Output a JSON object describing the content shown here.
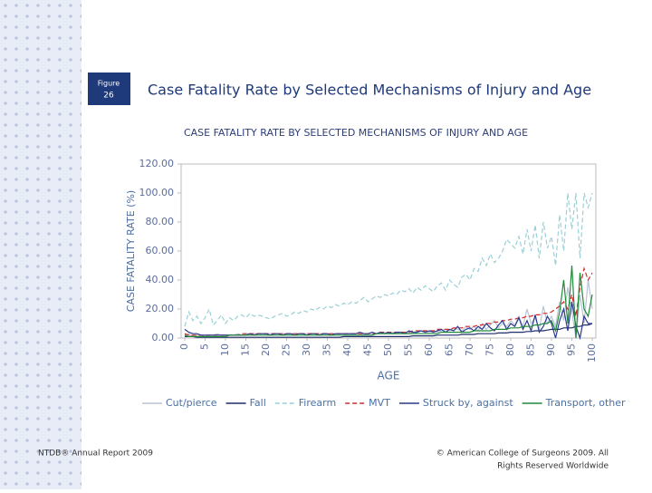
{
  "header": {
    "figure_label": "Figure",
    "figure_number": "26",
    "title": "Case Fatality Rate by Selected Mechanisms of Injury and Age"
  },
  "footer": {
    "left": "NTDB® Annual Report 2009",
    "right_line1": "© American College of Surgeons 2009.  All",
    "right_line2": "Rights Reserved Worldwide"
  },
  "chart_data": {
    "type": "line",
    "title": "CASE FATALITY RATE BY SELECTED MECHANISMS OF INJURY AND AGE",
    "x_label": "AGE",
    "y_label": "CASE FATALITY RATE (%)",
    "xlim": [
      0,
      100
    ],
    "ylim": [
      0,
      120
    ],
    "xticks": [
      0,
      5,
      10,
      15,
      20,
      25,
      30,
      35,
      40,
      45,
      50,
      55,
      60,
      65,
      70,
      75,
      80,
      85,
      90,
      95,
      100
    ],
    "yticks": [
      {
        "value": 0,
        "label": "0.00"
      },
      {
        "value": 20,
        "label": "20.00"
      },
      {
        "value": 40,
        "label": "40.00"
      },
      {
        "value": 60,
        "label": "60.00"
      },
      {
        "value": 80,
        "label": "80.00"
      },
      {
        "value": 100,
        "label": "100.00"
      },
      {
        "value": 120,
        "label": "120.00"
      }
    ],
    "grid": false,
    "x": [
      0,
      1,
      2,
      3,
      4,
      5,
      6,
      7,
      8,
      9,
      10,
      11,
      12,
      13,
      14,
      15,
      16,
      17,
      18,
      19,
      20,
      21,
      22,
      23,
      24,
      25,
      26,
      27,
      28,
      29,
      30,
      31,
      32,
      33,
      34,
      35,
      36,
      37,
      38,
      39,
      40,
      41,
      42,
      43,
      44,
      45,
      46,
      47,
      48,
      49,
      50,
      51,
      52,
      53,
      54,
      55,
      56,
      57,
      58,
      59,
      60,
      61,
      62,
      63,
      64,
      65,
      66,
      67,
      68,
      69,
      70,
      71,
      72,
      73,
      74,
      75,
      76,
      77,
      78,
      79,
      80,
      81,
      82,
      83,
      84,
      85,
      86,
      87,
      88,
      89,
      90,
      91,
      92,
      93,
      94,
      95,
      96,
      97,
      98,
      99,
      100
    ],
    "series": [
      {
        "name": "Cut/pierce",
        "color": "#b9c4d6",
        "dash": false,
        "values": [
          2,
          3,
          1,
          2,
          2,
          1,
          2,
          2,
          3,
          2,
          2,
          2,
          2,
          3,
          2,
          3,
          3,
          3,
          3,
          3,
          3,
          3,
          3,
          3,
          3,
          3,
          3,
          3,
          3,
          3,
          3,
          3,
          3,
          3,
          3,
          3,
          3,
          3,
          3,
          3,
          3,
          3,
          3,
          3,
          3,
          3,
          3,
          3,
          3,
          4,
          3,
          4,
          3,
          4,
          4,
          3,
          4,
          4,
          5,
          4,
          4,
          5,
          4,
          5,
          6,
          5,
          7,
          6,
          5,
          8,
          6,
          8,
          5,
          10,
          6,
          9,
          12,
          7,
          10,
          8,
          12,
          9,
          15,
          8,
          20,
          10,
          14,
          6,
          22,
          10,
          15,
          8,
          25,
          12,
          35,
          18,
          0,
          30,
          10,
          40,
          20
        ]
      },
      {
        "name": "Fall",
        "color": "#1f2d6b",
        "dash": false,
        "values": [
          1,
          1,
          1,
          0.5,
          0.5,
          0.5,
          0.5,
          0.5,
          0.5,
          0.5,
          0.5,
          0.5,
          0.5,
          0.5,
          0.5,
          0.5,
          0.5,
          0.5,
          0.5,
          0.5,
          0.5,
          0.5,
          0.5,
          0.5,
          0.5,
          0.5,
          0.5,
          0.5,
          0.5,
          0.5,
          0.5,
          0.5,
          0.5,
          0.5,
          0.5,
          0.5,
          0.5,
          0.5,
          0.5,
          1,
          1,
          1,
          1,
          1,
          1,
          1,
          1,
          1,
          1,
          1,
          1,
          1,
          1,
          1,
          1,
          1,
          1.5,
          1.5,
          1.5,
          1.5,
          1.5,
          1.5,
          2,
          2,
          2,
          2,
          2,
          2,
          2.5,
          2.5,
          2.5,
          2.5,
          3,
          3,
          3,
          3,
          3,
          3.5,
          3.5,
          3.5,
          4,
          4,
          4,
          4,
          4.5,
          4.5,
          5,
          5,
          5,
          5.5,
          6,
          6,
          6,
          7,
          7,
          7,
          8,
          8,
          9,
          9,
          10
        ]
      },
      {
        "name": "Firearm",
        "color": "#9ad0d6",
        "dash": true,
        "values": [
          8,
          18,
          12,
          15,
          10,
          14,
          20,
          9,
          12,
          16,
          10,
          14,
          12,
          15,
          16,
          14,
          17,
          15,
          16,
          15,
          14,
          13,
          15,
          16,
          17,
          15,
          16,
          18,
          17,
          19,
          18,
          20,
          19,
          21,
          20,
          22,
          21,
          23,
          22,
          24,
          23,
          25,
          24,
          26,
          28,
          25,
          27,
          29,
          28,
          30,
          29,
          31,
          30,
          33,
          32,
          34,
          31,
          35,
          33,
          36,
          34,
          32,
          36,
          38,
          33,
          40,
          37,
          35,
          42,
          44,
          40,
          48,
          46,
          55,
          50,
          58,
          52,
          55,
          60,
          68,
          65,
          62,
          70,
          58,
          75,
          60,
          78,
          55,
          80,
          62,
          70,
          50,
          85,
          60,
          100,
          75,
          100,
          55,
          100,
          90,
          100
        ]
      },
      {
        "name": "MVT",
        "color": "#d42a2a",
        "dash": true,
        "values": [
          3,
          2,
          2,
          2,
          2,
          2,
          2,
          2,
          2,
          2,
          2,
          2,
          2,
          2,
          3,
          3,
          3,
          3,
          3,
          3,
          3,
          3,
          3,
          3,
          3,
          3,
          3,
          3,
          3,
          3,
          3,
          3,
          3,
          3,
          3,
          3,
          3,
          3,
          3,
          3,
          3,
          3,
          3,
          3,
          3,
          3,
          3,
          3,
          4,
          4,
          4,
          4,
          4,
          4,
          4,
          4,
          5,
          5,
          5,
          5,
          5,
          5,
          6,
          6,
          6,
          6,
          7,
          7,
          7,
          8,
          8,
          8,
          9,
          9,
          10,
          10,
          11,
          11,
          12,
          12,
          13,
          13,
          14,
          14,
          15,
          15,
          16,
          16,
          17,
          17,
          18,
          20,
          22,
          25,
          20,
          30,
          15,
          35,
          48,
          40,
          45
        ]
      },
      {
        "name": "Struck by, against",
        "color": "#2a3a8c",
        "dash": false,
        "values": [
          6,
          4,
          3,
          3,
          2,
          2,
          2,
          2,
          2,
          2,
          2,
          2,
          2,
          2,
          2,
          2,
          3,
          2,
          3,
          3,
          3,
          2,
          3,
          3,
          2,
          3,
          3,
          2,
          3,
          3,
          2,
          3,
          3,
          2,
          3,
          3,
          2,
          3,
          3,
          3,
          3,
          3,
          3,
          4,
          3,
          3,
          4,
          3,
          4,
          3,
          4,
          3,
          4,
          4,
          3,
          5,
          4,
          4,
          5,
          4,
          5,
          4,
          5,
          6,
          4,
          6,
          5,
          8,
          4,
          6,
          7,
          5,
          8,
          6,
          10,
          7,
          5,
          9,
          12,
          6,
          10,
          8,
          14,
          6,
          12,
          5,
          16,
          4,
          8,
          15,
          10,
          0,
          12,
          20,
          5,
          25,
          8,
          0,
          15,
          10,
          10
        ]
      },
      {
        "name": "Transport, other",
        "color": "#1f8a3a",
        "dash": false,
        "values": [
          2,
          1,
          1,
          1,
          1,
          1,
          1,
          1,
          1,
          1,
          1,
          2,
          2,
          2,
          2,
          2,
          2,
          2,
          2,
          2,
          2,
          2,
          2,
          2,
          2,
          2,
          2,
          2,
          2,
          2,
          2,
          2,
          2,
          2,
          2,
          2,
          2,
          2,
          2,
          2,
          2,
          2,
          2,
          2,
          2,
          2,
          2,
          3,
          3,
          3,
          3,
          3,
          3,
          3,
          3,
          3,
          3,
          3,
          3,
          3,
          3,
          3,
          3,
          4,
          4,
          4,
          4,
          4,
          4,
          4,
          4,
          5,
          5,
          5,
          5,
          5,
          6,
          6,
          6,
          6,
          7,
          7,
          7,
          8,
          8,
          8,
          9,
          9,
          10,
          10,
          12,
          5,
          18,
          40,
          10,
          50,
          0,
          45,
          20,
          15,
          30
        ]
      }
    ]
  }
}
